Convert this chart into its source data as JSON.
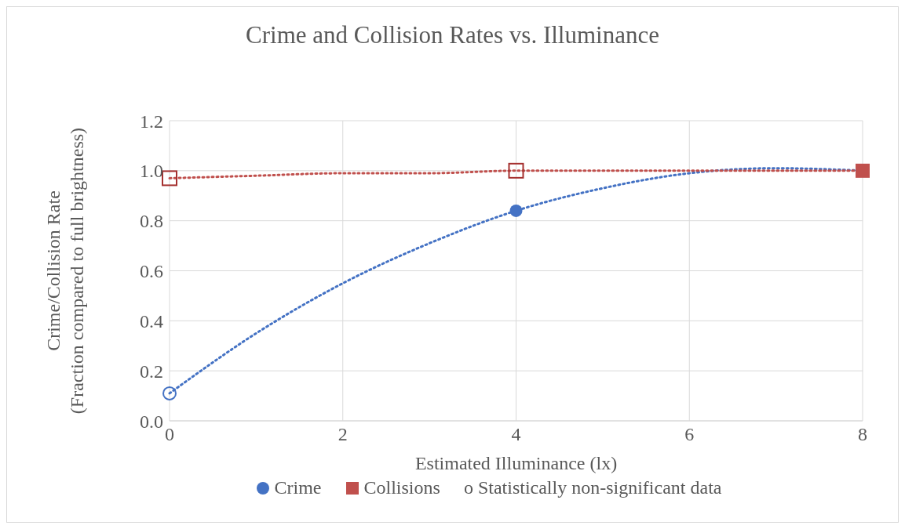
{
  "chart_data": {
    "type": "scatter",
    "title": "Crime and Collision Rates vs. Illuminance",
    "xlabel": "Estimated Illuminance (lx)",
    "ylabel": "Crime/Collision Rate\n(Fraction compared to full brightness)",
    "x": [
      0,
      4,
      8
    ],
    "xlim": [
      0,
      8
    ],
    "xticks": [
      0,
      2,
      4,
      6,
      8
    ],
    "ylim": [
      0,
      1.2
    ],
    "yticks": [
      {
        "value": 0,
        "label": "0.0"
      },
      {
        "value": 0.2,
        "label": "0.2"
      },
      {
        "value": 0.4,
        "label": "0.4"
      },
      {
        "value": 0.6,
        "label": "0.6"
      },
      {
        "value": 0.8,
        "label": "0.8"
      },
      {
        "value": 1,
        "label": "1.0"
      },
      {
        "value": 1.2,
        "label": "1.2"
      }
    ],
    "grid": true,
    "legend": "bottom",
    "annotations": [
      "o Statistically non-significant data"
    ],
    "series": [
      {
        "type": "line",
        "color": "#4472c4",
        "x": [
          0,
          1,
          2,
          3,
          4,
          5,
          6,
          7,
          8
        ],
        "values": [
          0.11,
          0.35,
          0.55,
          0.71,
          0.84,
          0.93,
          0.99,
          1.01,
          1.0
        ],
        "marker": "none",
        "line_style": "dotted"
      },
      {
        "type": "line",
        "color": "#c0504d",
        "x": [
          0,
          1,
          2,
          3,
          4,
          5,
          6,
          7,
          8
        ],
        "values": [
          0.97,
          0.98,
          0.99,
          0.99,
          1.0,
          1.0,
          1.0,
          1.0,
          1.0
        ],
        "marker": "none",
        "line_style": "dotted"
      },
      {
        "name": "Crime",
        "color": "#4472c4",
        "marker": "circle",
        "values": [
          null,
          0.84,
          null
        ]
      },
      {
        "name": "Collisions",
        "color": "#c0504d",
        "marker": "square",
        "values": [
          null,
          null,
          1.0
        ]
      },
      {
        "color": "#4472c4",
        "marker": "circle",
        "values": [
          0.11,
          null,
          null
        ]
      },
      {
        "color": "#a5302f",
        "marker": "square",
        "values": [
          0.97,
          1.0,
          null
        ]
      }
    ]
  }
}
